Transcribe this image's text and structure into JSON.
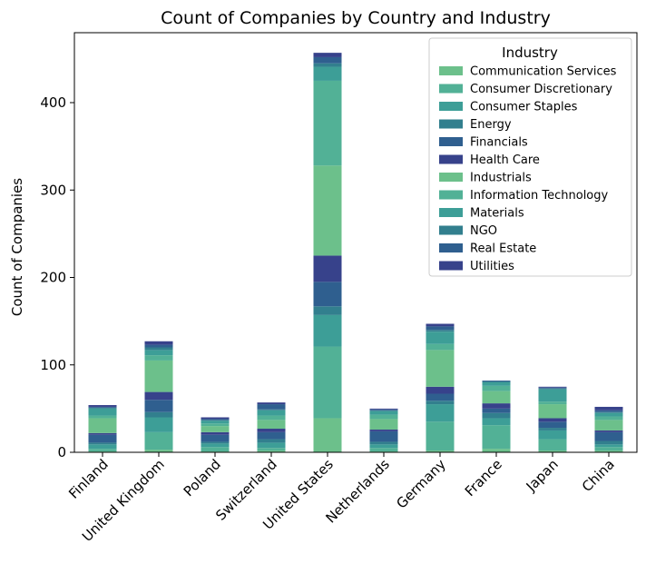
{
  "chart_data": {
    "type": "bar",
    "stacked": true,
    "title": "Count of Companies by Country and Industry",
    "xlabel": "",
    "ylabel": "Count of Companies",
    "ylim": [
      0,
      480
    ],
    "yticks": [
      0,
      100,
      200,
      300,
      400
    ],
    "grid": false,
    "legend_title": "Industry",
    "legend_position": "top-right",
    "categories": [
      "Finland",
      "United Kingdom",
      "Poland",
      "Switzerland",
      "United States",
      "Netherlands",
      "Germany",
      "France",
      "Japan",
      "China"
    ],
    "series": [
      {
        "name": "Communication Services",
        "color": "#6cc08b",
        "values": [
          1,
          3,
          1,
          2,
          39,
          1,
          2,
          4,
          2,
          2
        ]
      },
      {
        "name": "Consumer Discretionary",
        "color": "#52b196",
        "values": [
          3,
          20,
          5,
          3,
          82,
          4,
          33,
          27,
          13,
          4
        ]
      },
      {
        "name": "Consumer Staples",
        "color": "#3d9e97",
        "values": [
          5,
          17,
          4,
          6,
          36,
          4,
          20,
          8,
          10,
          3
        ]
      },
      {
        "name": "Energy",
        "color": "#327f8e",
        "values": [
          2,
          6,
          2,
          4,
          10,
          3,
          4,
          6,
          3,
          4
        ]
      },
      {
        "name": "Financials",
        "color": "#2f5f8f",
        "values": [
          9,
          14,
          8,
          8,
          28,
          12,
          8,
          5,
          7,
          10
        ]
      },
      {
        "name": "Health Care",
        "color": "#37428b",
        "values": [
          2,
          9,
          3,
          4,
          30,
          2,
          8,
          6,
          4,
          2
        ]
      },
      {
        "name": "Industrials",
        "color": "#6cc08b",
        "values": [
          17,
          36,
          7,
          10,
          103,
          12,
          42,
          14,
          16,
          12
        ]
      },
      {
        "name": "Information Technology",
        "color": "#52b196",
        "values": [
          3,
          6,
          3,
          5,
          97,
          5,
          7,
          6,
          3,
          4
        ]
      },
      {
        "name": "Materials",
        "color": "#3d9e97",
        "values": [
          8,
          6,
          3,
          6,
          16,
          4,
          14,
          4,
          14,
          4
        ]
      },
      {
        "name": "NGO",
        "color": "#327f8e",
        "values": [
          1,
          3,
          1,
          1,
          4,
          1,
          2,
          1,
          1,
          1
        ]
      },
      {
        "name": "Real Estate",
        "color": "#2f5f8f",
        "values": [
          1,
          3,
          1,
          6,
          7,
          1,
          4,
          1,
          1,
          2
        ]
      },
      {
        "name": "Utilities",
        "color": "#37428b",
        "values": [
          2,
          4,
          2,
          2,
          5,
          1,
          3,
          0,
          1,
          4
        ]
      }
    ]
  }
}
